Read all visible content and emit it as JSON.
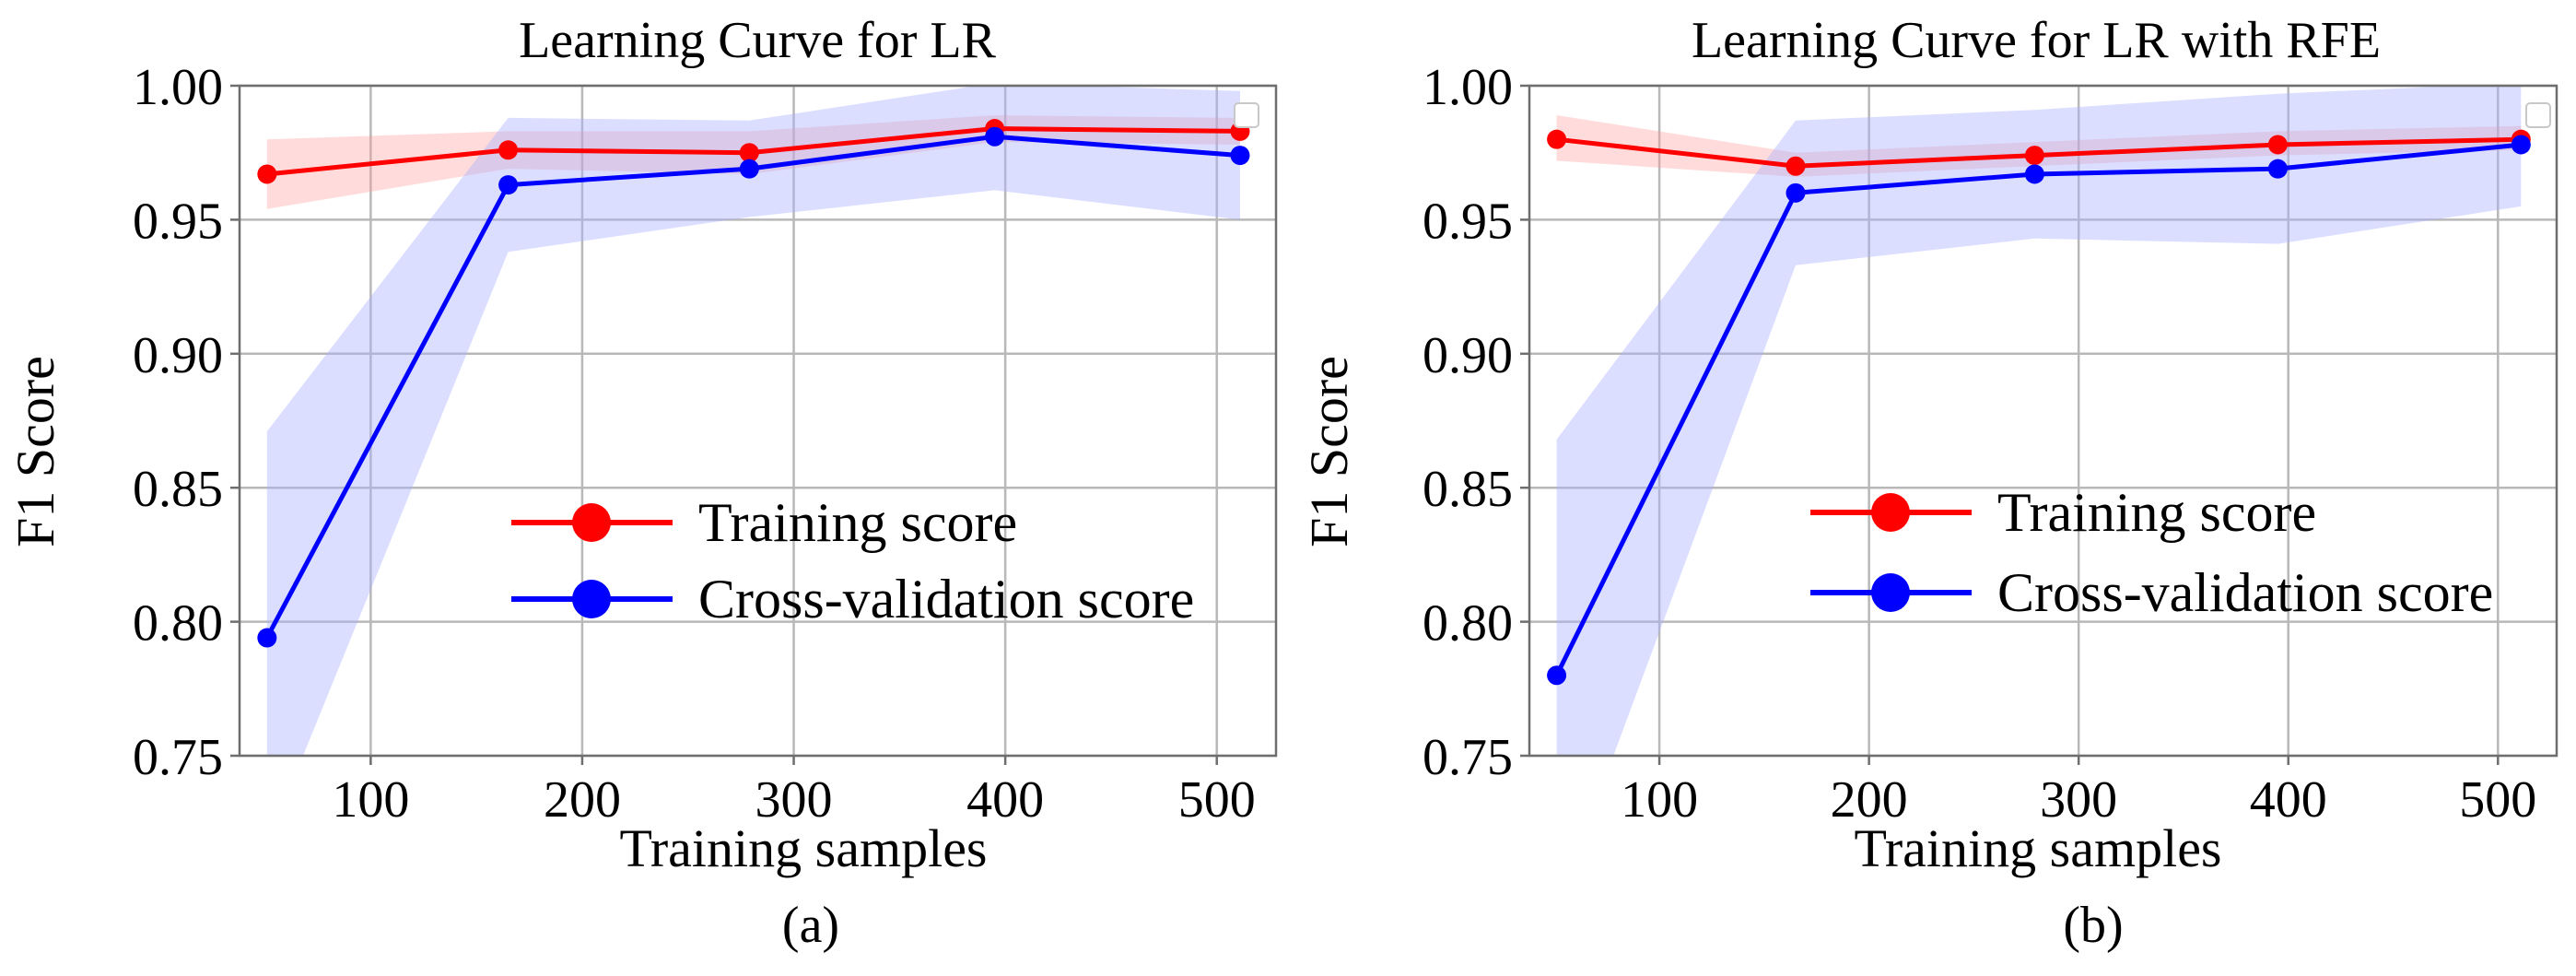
{
  "chart_data": [
    {
      "type": "line",
      "panel_caption": "(a)",
      "title": "Learning Curve for LR",
      "xlabel": "Training samples",
      "ylabel": "F1 Score",
      "xlim": [
        38,
        528
      ],
      "ylim": [
        0.75,
        1.0
      ],
      "xticks": [
        100,
        200,
        300,
        400,
        500
      ],
      "xtick_labels": [
        "100",
        "200",
        "300",
        "400",
        "500"
      ],
      "yticks": [
        0.75,
        0.8,
        0.85,
        0.9,
        0.95,
        1.0
      ],
      "ytick_labels": [
        "0.75",
        "0.80",
        "0.85",
        "0.90",
        "0.95",
        "1.00"
      ],
      "grid": true,
      "legend": {
        "placement": "center-right",
        "entries": [
          "Training score",
          "Cross-validation score"
        ]
      },
      "x": [
        51,
        165,
        279,
        395,
        511
      ],
      "series": [
        {
          "name": "Training score",
          "color": "#ff0000",
          "fill_color": "#ff9999",
          "values": [
            0.967,
            0.976,
            0.975,
            0.984,
            0.983
          ],
          "band_low": [
            0.954,
            0.969,
            0.967,
            0.979,
            0.978
          ],
          "band_high": [
            0.98,
            0.983,
            0.983,
            0.989,
            0.988
          ]
        },
        {
          "name": "Cross-validation score",
          "color": "#0000ff",
          "fill_color": "#aab0ff",
          "values": [
            0.794,
            0.963,
            0.969,
            0.981,
            0.974
          ],
          "band_low": [
            0.717,
            0.938,
            0.951,
            0.961,
            0.95
          ],
          "band_high": [
            0.871,
            0.988,
            0.987,
            1.001,
            0.998
          ]
        }
      ]
    },
    {
      "type": "line",
      "panel_caption": "(b)",
      "title": "Learning Curve for LR with RFE",
      "xlabel": "Training samples",
      "ylabel": "F1 Score",
      "xlim": [
        38,
        528
      ],
      "ylim": [
        0.75,
        1.0
      ],
      "xticks": [
        100,
        200,
        300,
        400,
        500
      ],
      "xtick_labels": [
        "100",
        "200",
        "300",
        "400",
        "500"
      ],
      "yticks": [
        0.75,
        0.8,
        0.85,
        0.9,
        0.95,
        1.0
      ],
      "ytick_labels": [
        "0.75",
        "0.80",
        "0.85",
        "0.90",
        "0.95",
        "1.00"
      ],
      "grid": true,
      "legend": {
        "placement": "center-right",
        "entries": [
          "Training score",
          "Cross-validation score"
        ]
      },
      "x": [
        51,
        165,
        279,
        395,
        511
      ],
      "series": [
        {
          "name": "Training score",
          "color": "#ff0000",
          "fill_color": "#ff9999",
          "values": [
            0.98,
            0.97,
            0.974,
            0.978,
            0.98
          ],
          "band_low": [
            0.972,
            0.966,
            0.97,
            0.974,
            0.976
          ],
          "band_high": [
            0.989,
            0.975,
            0.979,
            0.983,
            0.985
          ]
        },
        {
          "name": "Cross-validation score",
          "color": "#0000ff",
          "fill_color": "#aab0ff",
          "values": [
            0.78,
            0.96,
            0.967,
            0.969,
            0.978
          ],
          "band_low": [
            0.693,
            0.933,
            0.943,
            0.941,
            0.955
          ],
          "band_high": [
            0.868,
            0.987,
            0.991,
            0.997,
            1.001
          ]
        }
      ]
    }
  ]
}
